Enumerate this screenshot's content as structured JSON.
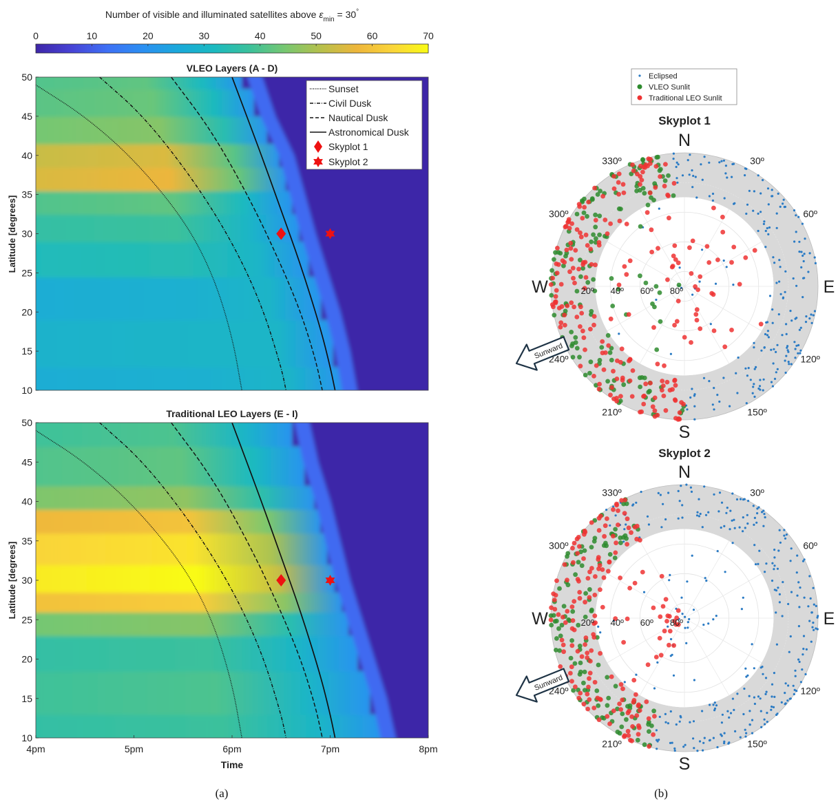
{
  "colorbar": {
    "title_prefix": "Number of visible and illuminated satellites above ",
    "title_symbol": "ε",
    "title_sub": "min",
    "title_suffix": " = 30",
    "title_degree": "°",
    "ticks": [
      "0",
      "10",
      "20",
      "30",
      "40",
      "50",
      "60",
      "70"
    ],
    "range": [
      0,
      70
    ],
    "colors": [
      "#3e26a8",
      "#4743d5",
      "#3e70f5",
      "#2b8ff2",
      "#1aa9da",
      "#1bbac0",
      "#3cc19b",
      "#78c770",
      "#b7c04b",
      "#eeb63b",
      "#fad53a",
      "#f9fb15"
    ]
  },
  "legend": {
    "sunset": "Sunset",
    "civil": "Civil Dusk",
    "nautical": "Nautical Dusk",
    "astro": "Astronomical Dusk",
    "sky1": "Skyplot 1",
    "sky2": "Skyplot 2"
  },
  "chart_data": [
    {
      "type": "heatmap",
      "title": "VLEO Layers (A - D)",
      "xlabel": "",
      "ylabel": "Latitude [degrees]",
      "xlim": [
        16,
        20
      ],
      "ylim": [
        10,
        50
      ],
      "xticks": [],
      "yticks": [
        "10",
        "15",
        "20",
        "25",
        "30",
        "35",
        "40",
        "45",
        "50"
      ],
      "bands": [
        {
          "lat": 10,
          "value": 28
        },
        {
          "lat": 16,
          "value": 30
        },
        {
          "lat": 22,
          "value": 28
        },
        {
          "lat": 27,
          "value": 34
        },
        {
          "lat": 31,
          "value": 38
        },
        {
          "lat": 34,
          "value": 42
        },
        {
          "lat": 37,
          "value": 57
        },
        {
          "lat": 40,
          "value": 55
        },
        {
          "lat": 43,
          "value": 46
        },
        {
          "lat": 47,
          "value": 43
        },
        {
          "lat": 50,
          "value": 42
        }
      ],
      "dark_boundary": [
        {
          "lat": 10,
          "time": 19.15
        },
        {
          "lat": 20,
          "time": 18.95
        },
        {
          "lat": 30,
          "time": 18.7
        },
        {
          "lat": 40,
          "time": 18.48
        },
        {
          "lat": 50,
          "time": 18.1
        }
      ],
      "curves": [
        {
          "name": "Sunset",
          "style": "dotted",
          "points": [
            [
              16.0,
              49
            ],
            [
              16.5,
              45
            ],
            [
              17.0,
              39.5
            ],
            [
              17.5,
              32
            ],
            [
              17.8,
              25
            ],
            [
              18.0,
              17
            ],
            [
              18.1,
              10
            ]
          ]
        },
        {
          "name": "Civil Dusk",
          "style": "dashdot",
          "points": [
            [
              16.65,
              50
            ],
            [
              17.1,
              45
            ],
            [
              17.6,
              37
            ],
            [
              18.0,
              29
            ],
            [
              18.3,
              21
            ],
            [
              18.5,
              13
            ],
            [
              18.55,
              10
            ]
          ]
        },
        {
          "name": "Nautical Dusk",
          "style": "dashed",
          "points": [
            [
              17.38,
              50
            ],
            [
              17.8,
              43
            ],
            [
              18.2,
              34
            ],
            [
              18.5,
              26
            ],
            [
              18.7,
              20
            ],
            [
              18.85,
              14
            ],
            [
              18.92,
              10
            ]
          ]
        },
        {
          "name": "Astronomical Dusk",
          "style": "solid",
          "points": [
            [
              18.0,
              50
            ],
            [
              18.3,
              40
            ],
            [
              18.5,
              33
            ],
            [
              18.7,
              26
            ],
            [
              18.9,
              18
            ],
            [
              19.0,
              13
            ],
            [
              19.05,
              10
            ]
          ]
        }
      ],
      "markers": [
        {
          "name": "Skyplot 1",
          "shape": "diamond",
          "time": 18.5,
          "lat": 30
        },
        {
          "name": "Skyplot 2",
          "shape": "star",
          "time": 19.0,
          "lat": 30
        }
      ]
    },
    {
      "type": "heatmap",
      "title": "Traditional LEO Layers (E - I)",
      "xlabel": "Time",
      "ylabel": "Latitude [degrees]",
      "xlim": [
        16,
        20
      ],
      "ylim": [
        10,
        50
      ],
      "xticks": [
        "4pm",
        "5pm",
        "6pm",
        "7pm",
        "8pm"
      ],
      "yticks": [
        "10",
        "15",
        "20",
        "25",
        "30",
        "35",
        "40",
        "45",
        "50"
      ],
      "bands": [
        {
          "lat": 10,
          "value": 38
        },
        {
          "lat": 16,
          "value": 40
        },
        {
          "lat": 21,
          "value": 38
        },
        {
          "lat": 25,
          "value": 46
        },
        {
          "lat": 27,
          "value": 62
        },
        {
          "lat": 30,
          "value": 70
        },
        {
          "lat": 34,
          "value": 66
        },
        {
          "lat": 38,
          "value": 60
        },
        {
          "lat": 40,
          "value": 47
        },
        {
          "lat": 44,
          "value": 42
        },
        {
          "lat": 50,
          "value": 40
        }
      ],
      "dark_boundary": [
        {
          "lat": 10,
          "time": 19.55
        },
        {
          "lat": 20,
          "time": 19.3
        },
        {
          "lat": 30,
          "time": 19.05
        },
        {
          "lat": 40,
          "time": 18.85
        },
        {
          "lat": 50,
          "time": 18.6
        }
      ],
      "curves": [
        {
          "name": "Sunset",
          "style": "dotted",
          "points": [
            [
              16.0,
              49
            ],
            [
              16.5,
              45
            ],
            [
              17.0,
              39.5
            ],
            [
              17.5,
              32
            ],
            [
              17.8,
              25
            ],
            [
              18.0,
              17
            ],
            [
              18.1,
              10
            ]
          ]
        },
        {
          "name": "Civil Dusk",
          "style": "dashdot",
          "points": [
            [
              16.65,
              50
            ],
            [
              17.1,
              45
            ],
            [
              17.6,
              37
            ],
            [
              18.0,
              29
            ],
            [
              18.3,
              21
            ],
            [
              18.5,
              13
            ],
            [
              18.55,
              10
            ]
          ]
        },
        {
          "name": "Nautical Dusk",
          "style": "dashed",
          "points": [
            [
              17.38,
              50
            ],
            [
              17.8,
              43
            ],
            [
              18.2,
              34
            ],
            [
              18.5,
              26
            ],
            [
              18.7,
              20
            ],
            [
              18.85,
              14
            ],
            [
              18.92,
              10
            ]
          ]
        },
        {
          "name": "Astronomical Dusk",
          "style": "solid",
          "points": [
            [
              18.0,
              50
            ],
            [
              18.3,
              40
            ],
            [
              18.5,
              33
            ],
            [
              18.7,
              26
            ],
            [
              18.9,
              18
            ],
            [
              19.0,
              13
            ],
            [
              19.05,
              10
            ]
          ]
        }
      ],
      "markers": [
        {
          "name": "Skyplot 1",
          "shape": "diamond",
          "time": 18.5,
          "lat": 30
        },
        {
          "name": "Skyplot 2",
          "shape": "star",
          "time": 19.0,
          "lat": 30
        }
      ]
    },
    {
      "type": "scatter",
      "subtype": "polar-skyplot",
      "title": "Skyplot 1",
      "legend": [
        "Eclipsed",
        "VLEO Sunlit",
        "Traditional LEO Sunlit"
      ],
      "series_colors": {
        "Eclipsed": "#2b7bc4",
        "VLEO Sunlit": "#2e8b2e",
        "Traditional LEO Sunlit": "#ee3333"
      },
      "cardinals": {
        "N": "N",
        "E": "E",
        "S": "S",
        "W": "W"
      },
      "azimuth_labels": [
        "30º",
        "60º",
        "120º",
        "150º",
        "210º",
        "240º",
        "300º",
        "330º"
      ],
      "elevation_labels": [
        "20º",
        "40º",
        "60º",
        "80º"
      ],
      "masked_elevation_below": 30,
      "sunward_label": "Sunward",
      "regions": [
        {
          "series": "Eclipsed",
          "az": [
            0,
            180
          ],
          "el": [
            0,
            30
          ],
          "count": 190
        },
        {
          "series": "Eclipsed",
          "az": [
            355,
            360
          ],
          "el": [
            0,
            30
          ],
          "count": 8
        },
        {
          "series": "Eclipsed",
          "az": [
            180,
            360
          ],
          "el": [
            30,
            90
          ],
          "count": 8
        },
        {
          "series": "Eclipsed",
          "az": [
            0,
            180
          ],
          "el": [
            30,
            90
          ],
          "count": 10
        },
        {
          "series": "VLEO Sunlit",
          "az": [
            180,
            355
          ],
          "el": [
            0,
            30
          ],
          "count": 140
        },
        {
          "series": "VLEO Sunlit",
          "az": [
            200,
            340
          ],
          "el": [
            30,
            90
          ],
          "count": 14
        },
        {
          "series": "Traditional LEO Sunlit",
          "az": [
            180,
            355
          ],
          "el": [
            0,
            30
          ],
          "count": 170
        },
        {
          "series": "Traditional LEO Sunlit",
          "az": [
            0,
            360
          ],
          "el": [
            30,
            85
          ],
          "count": 55
        }
      ]
    },
    {
      "type": "scatter",
      "subtype": "polar-skyplot",
      "title": "Skyplot 2",
      "legend": [
        "Eclipsed",
        "VLEO Sunlit",
        "Traditional LEO Sunlit"
      ],
      "series_colors": {
        "Eclipsed": "#2b7bc4",
        "VLEO Sunlit": "#2e8b2e",
        "Traditional LEO Sunlit": "#ee3333"
      },
      "cardinals": {
        "N": "N",
        "E": "E",
        "S": "S",
        "W": "W"
      },
      "azimuth_labels": [
        "30º",
        "60º",
        "120º",
        "150º",
        "210º",
        "240º",
        "300º",
        "330º"
      ],
      "elevation_labels": [
        "20º",
        "40º",
        "60º",
        "80º"
      ],
      "masked_elevation_below": 30,
      "sunward_label": "Sunward",
      "regions": [
        {
          "series": "Eclipsed",
          "az": [
            0,
            195
          ],
          "el": [
            0,
            30
          ],
          "count": 230
        },
        {
          "series": "Eclipsed",
          "az": [
            320,
            360
          ],
          "el": [
            0,
            30
          ],
          "count": 30
        },
        {
          "series": "Eclipsed",
          "az": [
            0,
            360
          ],
          "el": [
            30,
            90
          ],
          "count": 45
        },
        {
          "series": "VLEO Sunlit",
          "az": [
            195,
            335
          ],
          "el": [
            0,
            30
          ],
          "count": 120
        },
        {
          "series": "Traditional LEO Sunlit",
          "az": [
            195,
            335
          ],
          "el": [
            0,
            30
          ],
          "count": 150
        },
        {
          "series": "Traditional LEO Sunlit",
          "az": [
            200,
            340
          ],
          "el": [
            30,
            85
          ],
          "count": 30
        }
      ]
    }
  ],
  "captions": {
    "a": "(a)",
    "b": "(b)"
  }
}
